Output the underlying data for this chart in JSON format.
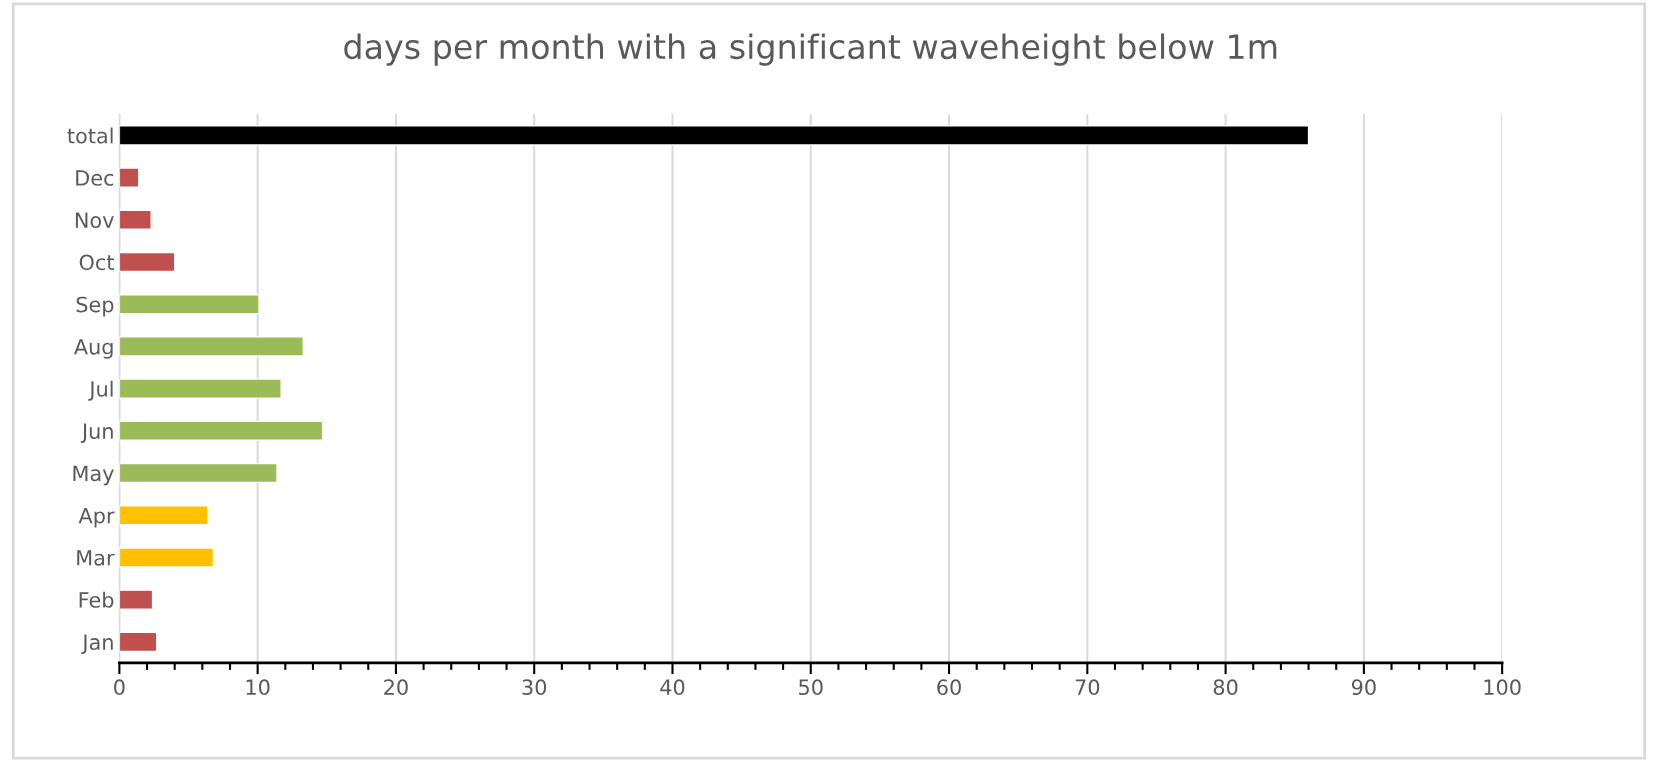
{
  "chart_data": {
    "type": "bar",
    "orientation": "horizontal",
    "title": "days per month with a significant waveheight below 1m",
    "categories": [
      "total",
      "Dec",
      "Nov",
      "Oct",
      "Sep",
      "Aug",
      "Jul",
      "Jun",
      "May",
      "Apr",
      "Mar",
      "Feb",
      "Jan"
    ],
    "values": [
      86.0,
      1.4,
      2.3,
      4.0,
      10.1,
      13.3,
      11.7,
      14.7,
      11.4,
      6.4,
      6.8,
      2.4,
      2.7
    ],
    "colors": [
      "#000000",
      "#c0504d",
      "#c0504d",
      "#c0504d",
      "#9bbb59",
      "#9bbb59",
      "#9bbb59",
      "#9bbb59",
      "#9bbb59",
      "#ffc000",
      "#ffc000",
      "#c0504d",
      "#c0504d"
    ],
    "xlim": [
      0,
      100
    ],
    "xticks": [
      0,
      {
        "value": 2,
        "label": null
      },
      {
        "value": 4,
        "label": null
      },
      {
        "value": 6,
        "label": null
      },
      {
        "value": 8,
        "label": null
      },
      10,
      {
        "value": 12,
        "label": null
      },
      {
        "value": 14,
        "label": null
      },
      {
        "value": 16,
        "label": null
      },
      {
        "value": 18,
        "label": null
      },
      20,
      {
        "value": 22,
        "label": null
      },
      {
        "value": 24,
        "label": null
      },
      {
        "value": 26,
        "label": null
      },
      {
        "value": 28,
        "label": null
      },
      30,
      {
        "value": 32,
        "label": null
      },
      {
        "value": 34,
        "label": null
      },
      {
        "value": 36,
        "label": null
      },
      {
        "value": 38,
        "label": null
      },
      40,
      {
        "value": 42,
        "label": null
      },
      {
        "value": 44,
        "label": null
      },
      {
        "value": 46,
        "label": null
      },
      {
        "value": 48,
        "label": null
      },
      50,
      {
        "value": 52,
        "label": null
      },
      {
        "value": 54,
        "label": null
      },
      {
        "value": 56,
        "label": null
      },
      {
        "value": 58,
        "label": null
      },
      60,
      {
        "value": 62,
        "label": null
      },
      {
        "value": 64,
        "label": null
      },
      {
        "value": 66,
        "label": null
      },
      {
        "value": 68,
        "label": null
      },
      70,
      {
        "value": 72,
        "label": null
      },
      {
        "value": 74,
        "label": null
      },
      {
        "value": 76,
        "label": null
      },
      {
        "value": 78,
        "label": null
      },
      80,
      {
        "value": 82,
        "label": null
      },
      {
        "value": 84,
        "label": null
      },
      {
        "value": 86,
        "label": null
      },
      {
        "value": 88,
        "label": null
      },
      90,
      {
        "value": 92,
        "label": null
      },
      {
        "value": 94,
        "label": null
      },
      {
        "value": 96,
        "label": null
      },
      {
        "value": 98,
        "label": null
      },
      100
    ],
    "grid": "x",
    "legend": false
  }
}
